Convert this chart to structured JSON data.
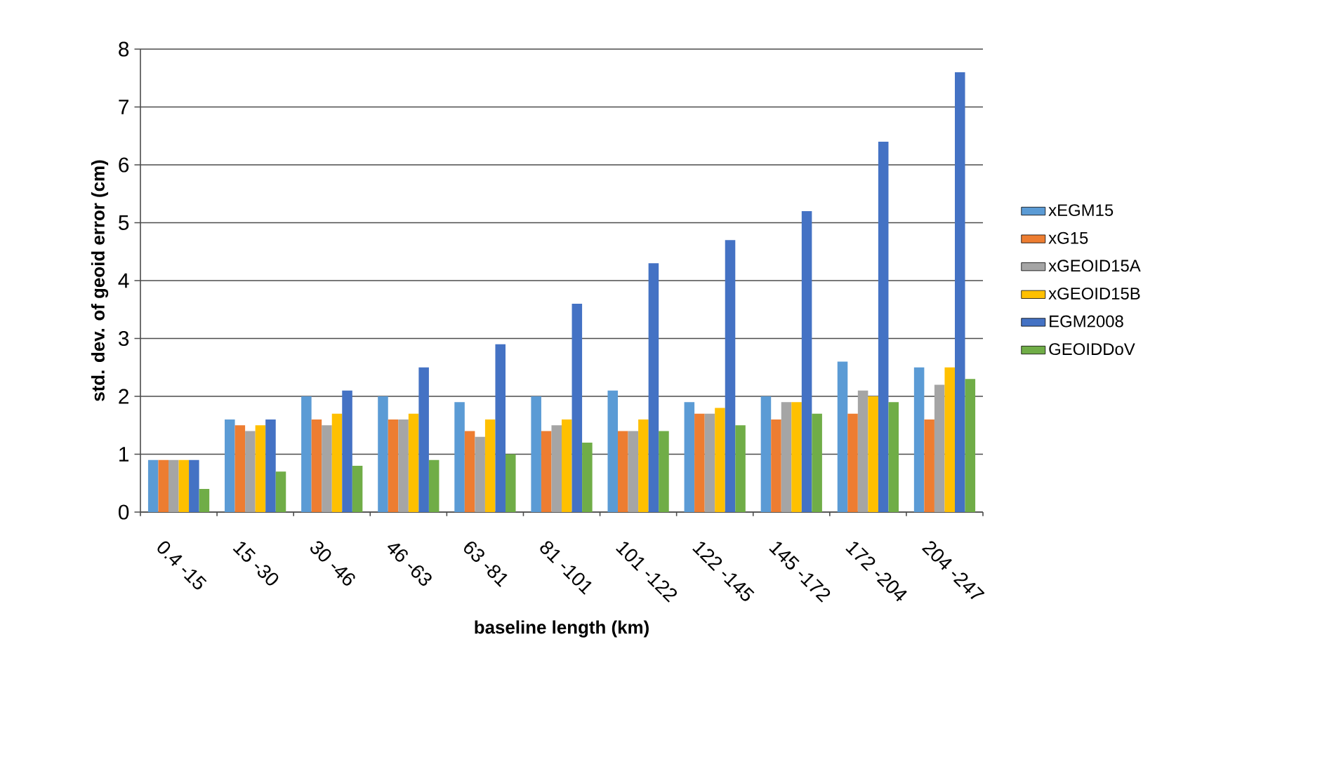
{
  "chart_data": {
    "type": "bar",
    "xlabel": "baseline length (km)",
    "ylabel": "std. dev. of geoid error (cm)",
    "categories": [
      "0.4 -15",
      "15 -30",
      "30 -46",
      "46 -63",
      "63 -81",
      "81 -101",
      "101 -122",
      "122 -145",
      "145 -172",
      "172 -204",
      "204 -247"
    ],
    "series": [
      {
        "name": "xEGM15",
        "color": "#5b9bd5",
        "values": [
          0.9,
          1.6,
          2.0,
          2.0,
          1.9,
          2.0,
          2.1,
          1.9,
          2.0,
          2.6,
          2.5
        ]
      },
      {
        "name": "xG15",
        "color": "#ed7d31",
        "values": [
          0.9,
          1.5,
          1.6,
          1.6,
          1.4,
          1.4,
          1.4,
          1.7,
          1.6,
          1.7,
          1.6
        ]
      },
      {
        "name": "xGEOID15A",
        "color": "#a5a5a5",
        "values": [
          0.9,
          1.4,
          1.5,
          1.6,
          1.3,
          1.5,
          1.4,
          1.7,
          1.9,
          2.1,
          2.2
        ]
      },
      {
        "name": "xGEOID15B",
        "color": "#ffc000",
        "values": [
          0.9,
          1.5,
          1.7,
          1.7,
          1.6,
          1.6,
          1.6,
          1.8,
          1.9,
          2.0,
          2.5
        ]
      },
      {
        "name": "EGM2008",
        "color": "#4472c4",
        "values": [
          0.9,
          1.6,
          2.1,
          2.5,
          2.9,
          3.6,
          4.3,
          4.7,
          5.2,
          6.4,
          7.6
        ]
      },
      {
        "name": "GEOIDDoV",
        "color": "#70ad47",
        "values": [
          0.4,
          0.7,
          0.8,
          0.9,
          1.0,
          1.2,
          1.4,
          1.5,
          1.7,
          1.9,
          2.3
        ]
      }
    ],
    "ylim": [
      0,
      8
    ],
    "yticks": [
      0,
      1,
      2,
      3,
      4,
      5,
      6,
      7,
      8
    ],
    "grid": "y",
    "legend": "right"
  }
}
